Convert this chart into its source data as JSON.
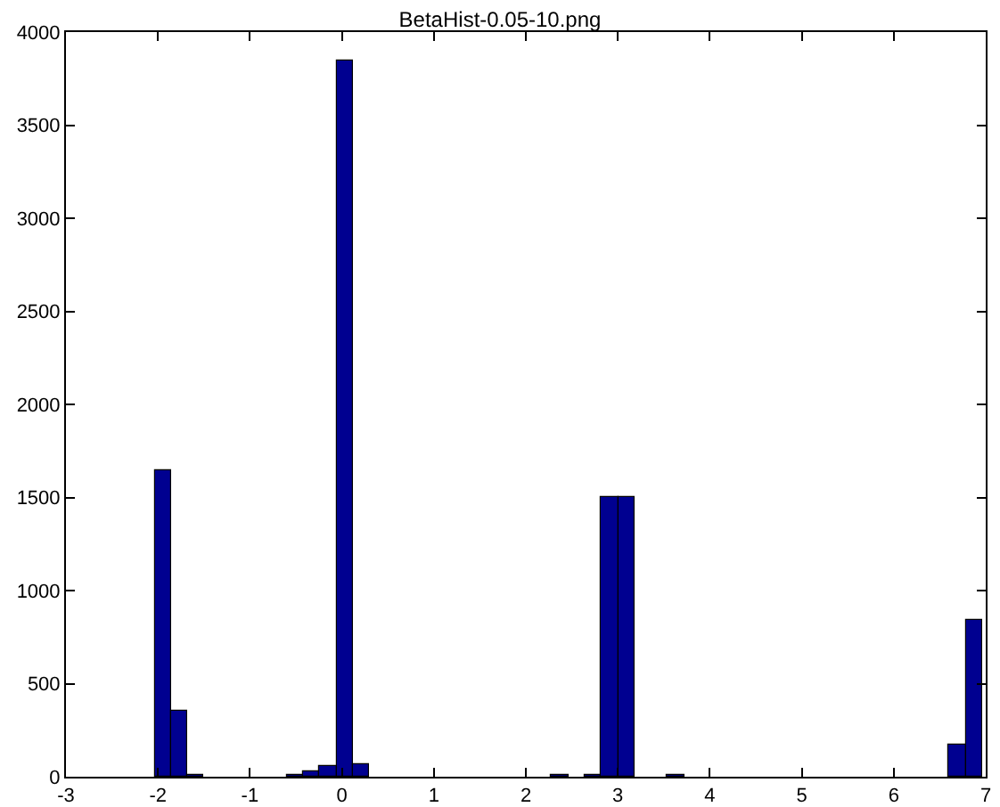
{
  "chart_data": {
    "type": "histogram",
    "title": "BetaHist-0.05-10.png",
    "bins": [
      -2.04,
      -1.86,
      -1.68,
      -1.5,
      -1.32,
      -1.14,
      -0.96,
      -0.78,
      -0.6,
      -0.42,
      -0.24,
      -0.06,
      0.12,
      0.3,
      0.48,
      0.66,
      0.84,
      1.02,
      1.2,
      1.38,
      1.56,
      1.74,
      1.92,
      2.1,
      2.28,
      2.46,
      2.64,
      2.82,
      3.0,
      3.18,
      3.36,
      3.54,
      3.72,
      3.9,
      4.08,
      4.26,
      4.44,
      4.62,
      4.8,
      4.98,
      5.16,
      5.34,
      5.52,
      5.7,
      5.88,
      6.06,
      6.24,
      6.42,
      6.6,
      6.78,
      6.96
    ],
    "values": [
      1650,
      350,
      10,
      0,
      0,
      0,
      0,
      0,
      10,
      30,
      60,
      3850,
      70,
      0,
      0,
      0,
      0,
      0,
      0,
      0,
      0,
      0,
      0,
      0,
      10,
      0,
      10,
      1500,
      1500,
      0,
      0,
      10,
      0,
      0,
      0,
      0,
      0,
      0,
      0,
      0,
      0,
      0,
      0,
      0,
      0,
      0,
      0,
      0,
      170,
      840
    ],
    "color": "#000090",
    "xlim": [
      -3,
      7
    ],
    "xticks": [
      -3,
      -2,
      -1,
      0,
      1,
      2,
      3,
      4,
      5,
      6,
      7
    ],
    "ylim": [
      0,
      4000
    ],
    "yticks": [
      0,
      500,
      1000,
      1500,
      2000,
      2500,
      3000,
      3500,
      4000
    ],
    "grid": false
  }
}
